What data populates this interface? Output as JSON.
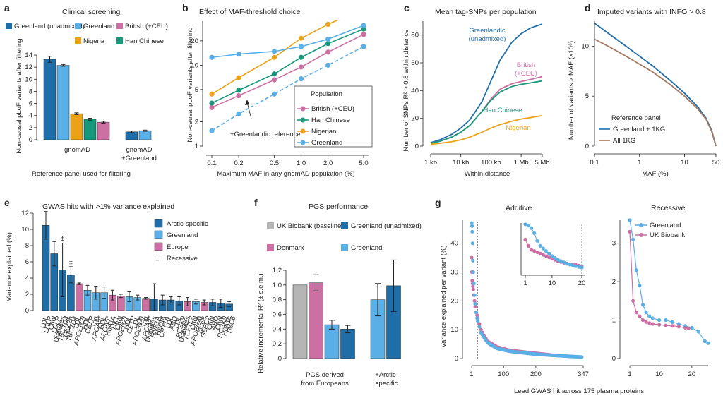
{
  "colors": {
    "greenland_unadmixed": "#1f6ea8",
    "greenland": "#5ab0e6",
    "british": "#cc6fa3",
    "nigeria": "#eba217",
    "han_chinese": "#17987a",
    "all_1kg": "#a57860",
    "ukb_baseline": "#b5b5b5",
    "denmark": "#cc6fa3",
    "arctic": "#1f6ea8",
    "europe": "#cc6fa3"
  },
  "panels": {
    "a": {
      "letter": "a",
      "title": "Clinical screening",
      "legend": [
        "Greenland (unadmixed)",
        "Greenland",
        "Nigeria",
        "British (+CEU)",
        "Han Chinese"
      ],
      "ylabel": "Non-causal pLoF variants after filtering",
      "xlabel": "Reference panel used for filtering",
      "groups": [
        "gnomAD",
        "gnomAD +Greenland"
      ]
    },
    "b": {
      "letter": "b",
      "title": "Effect of MAF-threshold choice",
      "ylabel": "Non-causal pLoF variants after filtering",
      "xlabel": "Maximum MAF in any gnomAD population (%)",
      "legend_title": "Population",
      "legend": [
        "British (+CEU)",
        "Han Chinese",
        "Nigerian",
        "Greenland"
      ],
      "annotation": "+Greenlandic reference"
    },
    "c": {
      "letter": "c",
      "title": "Mean tag-SNPs per population",
      "ylabel": "Number of SNPs R² > 0.8 within distance",
      "xlabel": "Within distance",
      "labels": [
        "Greenlandic (unadmixed)",
        "British (+CEU)",
        "Han Chinese",
        "Nigerian"
      ]
    },
    "d": {
      "letter": "d",
      "title": "Imputed variants with INFO > 0.8",
      "ylabel": "Number of variants > MAF (×10⁶)",
      "xlabel": "MAF (%)",
      "legend_title": "Reference panel",
      "legend": [
        "Greenland + 1KG",
        "All 1KG"
      ]
    },
    "e": {
      "letter": "e",
      "title": "GWAS hits with >1% variance explained",
      "ylabel": "Variance explained (%)",
      "legend": [
        "Arctic-specific",
        "Greenland",
        "Europe",
        "Recessive"
      ],
      "dagger": "‡"
    },
    "f": {
      "letter": "f",
      "title": "PGS performance",
      "ylabel": "Relative incremental R² (± s.e.m.)",
      "legend": [
        "UK Biobank (baseline)",
        "Greenland (unadmixed)",
        "Denmark",
        "Greenland"
      ],
      "groups": [
        "PGS derived from Europeans",
        "+Arctic-specific"
      ]
    },
    "g": {
      "letter": "g",
      "title_additive": "Additive",
      "title_recessive": "Recessive",
      "ylabel": "Variance explained per variant (%)",
      "xlabel": "Lead GWAS hit across 175 plasma proteins",
      "legend": [
        "Greenland",
        "UK Biobank"
      ]
    }
  },
  "chart_data": [
    {
      "panel": "a",
      "type": "bar",
      "ylim": [
        0,
        14
      ],
      "yticks": [
        0,
        2,
        4,
        6,
        8,
        10,
        12,
        14
      ],
      "series_groups": [
        {
          "group": "gnomAD",
          "bars": [
            {
              "series": "Greenland (unadmixed)",
              "value": 13.3,
              "err": 0.5
            },
            {
              "series": "Greenland",
              "value": 12.3,
              "err": 0.15
            },
            {
              "series": "Nigeria",
              "value": 4.3,
              "err": 0.15
            },
            {
              "series": "Han Chinese",
              "value": 3.4,
              "err": 0.15
            },
            {
              "series": "British (+CEU)",
              "value": 2.9,
              "err": 0.15
            }
          ]
        },
        {
          "group": "gnomAD +Greenland",
          "bars": [
            {
              "series": "Greenland (unadmixed)",
              "value": 1.3,
              "err": 0.15
            },
            {
              "series": "Greenland",
              "value": 1.5,
              "err": 0.1
            }
          ]
        }
      ]
    },
    {
      "panel": "b",
      "type": "line",
      "xscale": "log",
      "yscale": "log",
      "x": [
        0.1,
        0.2,
        0.5,
        1.0,
        2.0,
        5.0
      ],
      "xticks": [
        "0.1",
        "0.2",
        "0.5",
        "1.0",
        "2.0",
        "5.0"
      ],
      "yticks": [
        1,
        2,
        5,
        10,
        20
      ],
      "ylim": [
        1,
        35
      ],
      "series": [
        {
          "name": "British (+CEU)",
          "values": [
            3.0,
            4.2,
            6.6,
            9.5,
            14.5,
            24
          ]
        },
        {
          "name": "Han Chinese",
          "values": [
            3.4,
            4.9,
            7.8,
            12.5,
            18.5,
            28
          ]
        },
        {
          "name": "Nigerian",
          "values": [
            4.4,
            7.0,
            12.5,
            21.5,
            32,
            50
          ]
        },
        {
          "name": "Greenland",
          "values": [
            12.5,
            13.7,
            14.8,
            17.0,
            21.0,
            31
          ]
        },
        {
          "name": "+Greenlandic reference",
          "dashed": true,
          "values": [
            1.55,
            2.5,
            4.4,
            6.8,
            10.0,
            17
          ]
        }
      ]
    },
    {
      "panel": "c",
      "type": "line",
      "xscale": "log",
      "xticks": [
        "1 kb",
        "10 kb",
        "100 kb",
        "1 Mb",
        "5 Mb"
      ],
      "yticks": [
        0,
        20,
        40,
        60,
        80
      ],
      "ylim": [
        0,
        90
      ],
      "x_kb": [
        1,
        2,
        5,
        10,
        20,
        50,
        100,
        200,
        500,
        1000,
        2000,
        5000
      ],
      "series": [
        {
          "name": "Greenlandic (unadmixed)",
          "values": [
            2.5,
            4.5,
            8.5,
            13,
            19,
            32,
            47,
            62,
            75,
            81,
            85,
            88
          ]
        },
        {
          "name": "British (+CEU)",
          "values": [
            2,
            3.5,
            6.5,
            10,
            15,
            25,
            34,
            41,
            45,
            46.5,
            48,
            50
          ]
        },
        {
          "name": "Han Chinese",
          "values": [
            2,
            3.5,
            6.5,
            10,
            15,
            25,
            33,
            39,
            43,
            44.5,
            45.5,
            47
          ]
        },
        {
          "name": "Nigerian",
          "values": [
            1.3,
            2,
            3.2,
            4.5,
            6.5,
            10,
            13,
            15.5,
            18,
            19.5,
            20.5,
            22
          ]
        }
      ]
    },
    {
      "panel": "d",
      "type": "line",
      "xscale": "log",
      "xticks": [
        "0.1",
        "1",
        "10",
        "50"
      ],
      "yticks": [
        0,
        5,
        10
      ],
      "ylim": [
        0,
        12.5
      ],
      "x": [
        0.1,
        0.2,
        0.5,
        1,
        2,
        5,
        10,
        20,
        30,
        40,
        50
      ],
      "series": [
        {
          "name": "Greenland + 1KG",
          "values": [
            12.3,
            11.3,
            10.0,
            9.0,
            8.0,
            6.5,
            5.3,
            3.9,
            2.8,
            1.6,
            0
          ]
        },
        {
          "name": "All 1KG",
          "values": [
            10.7,
            10.0,
            9.0,
            8.2,
            7.4,
            6.1,
            5.0,
            3.7,
            2.7,
            1.5,
            0
          ]
        }
      ]
    },
    {
      "panel": "e",
      "type": "bar",
      "ylim": [
        0,
        12
      ],
      "yticks": [
        0,
        2,
        4,
        6,
        8,
        10,
        12
      ],
      "bars": [
        {
          "trait": "LDL",
          "gene": "LDLR",
          "value": 10.5,
          "err": 1.7,
          "group": "Arctic-specific"
        },
        {
          "trait": "Chol",
          "gene": "LDLR",
          "value": 7.0,
          "err": 1.5,
          "group": "Arctic-specific"
        },
        {
          "trait": "Diabetes",
          "gene": "TBC1D4",
          "value": 5.0,
          "err": 3.3,
          "group": "Arctic-specific",
          "recessive": true
        },
        {
          "trait": "Gluc2h",
          "gene": "TBC1D4",
          "value": 4.4,
          "err": 1.0,
          "group": "Arctic-specific",
          "recessive": true
        },
        {
          "trait": "LDL",
          "gene": "APOE(ε2)",
          "value": 3.3,
          "err": 0.1,
          "group": "Europe"
        },
        {
          "trait": "HDL",
          "gene": "CETP",
          "value": 2.5,
          "err": 0.6,
          "group": "Greenland"
        },
        {
          "trait": "Trig",
          "gene": "APOA5*",
          "value": 2.2,
          "err": 0.8,
          "group": "Greenland"
        },
        {
          "trait": "HDL",
          "gene": "APOA5*",
          "value": 2.2,
          "err": 0.7,
          "group": "Greenland"
        },
        {
          "trait": "HbA1c",
          "gene": "HK1",
          "value": 1.9,
          "err": 0.6,
          "group": "Europe"
        },
        {
          "trait": "Chol",
          "gene": "APOE(ε2)",
          "value": 1.8,
          "err": 0.2,
          "group": "Europe"
        },
        {
          "trait": "HDL",
          "gene": "CETP",
          "value": 1.7,
          "err": 0.6,
          "group": "Greenland"
        },
        {
          "trait": "LDL",
          "gene": "APOE(ε4)",
          "value": 1.6,
          "err": 0.3,
          "group": "Greenland"
        },
        {
          "trait": "Trig",
          "gene": "APOA5*",
          "value": 1.5,
          "err": 0.1,
          "group": "Europe"
        },
        {
          "trait": "Diabetes",
          "gene": "HNF1A",
          "value": 1.4,
          "err": 1.9,
          "group": "Arctic-specific"
        },
        {
          "trait": "Height",
          "gene": "CPT1A",
          "value": 1.3,
          "err": 0.6,
          "group": "Arctic-specific"
        },
        {
          "trait": "LDL",
          "gene": "ABO",
          "value": 1.3,
          "err": 0.4,
          "group": "Arctic-specific"
        },
        {
          "trait": "LDL",
          "gene": "PCSK9",
          "value": 1.2,
          "err": 0.5,
          "group": "Arctic-specific"
        },
        {
          "trait": "Diabetes",
          "gene": "TCF7L2",
          "value": 1.1,
          "err": 0.5,
          "group": "Europe"
        },
        {
          "trait": "Chol",
          "gene": "APOE(ε4)",
          "value": 1.1,
          "err": 0.3,
          "group": "Greenland"
        },
        {
          "trait": "glucR",
          "gene": "G6PC2",
          "value": 1.0,
          "err": 0.3,
          "group": "Europe"
        },
        {
          "trait": "Chol",
          "gene": "ABO",
          "value": 1.0,
          "err": 0.4,
          "group": "Arctic-specific"
        },
        {
          "trait": "Chol",
          "gene": "PCSK9",
          "value": 0.9,
          "err": 0.5,
          "group": "Arctic-specific"
        },
        {
          "trait": "HbA1c",
          "gene": "TMC6",
          "value": 0.8,
          "err": 0.3,
          "group": "Arctic-specific"
        }
      ]
    },
    {
      "panel": "f",
      "type": "bar",
      "ylim": [
        0,
        1.2
      ],
      "yticks": [
        "0",
        "0.2",
        "0.4",
        "0.6",
        "0.8",
        "1.0",
        "1.2"
      ],
      "groups": [
        {
          "group": "PGS derived from Europeans",
          "bars": [
            {
              "series": "UK Biobank (baseline)",
              "value": 1.0,
              "err": 0
            },
            {
              "series": "Denmark",
              "value": 1.03,
              "err": 0.11
            },
            {
              "series": "Greenland",
              "value": 0.46,
              "err": 0.06
            },
            {
              "series": "Greenland (unadmixed)",
              "value": 0.4,
              "err": 0.05
            }
          ]
        },
        {
          "group": "+Arctic-specific",
          "bars": [
            {
              "series": "Greenland",
              "value": 0.8,
              "err": 0.22
            },
            {
              "series": "Greenland (unadmixed)",
              "value": 0.99,
              "err": 0.35
            }
          ]
        }
      ]
    },
    {
      "panel": "g-additive",
      "type": "scatter",
      "xticks": [
        "1",
        "100",
        "200",
        "300",
        "347"
      ],
      "yticks": [
        0,
        10,
        20,
        30,
        40
      ],
      "ylim": [
        0,
        48
      ],
      "inset_xticks": [
        "1",
        "10",
        "20"
      ],
      "series": [
        {
          "name": "Greenland",
          "points": [
            [
              1,
              47
            ],
            [
              2,
              46
            ],
            [
              3,
              44
            ],
            [
              4,
              40
            ],
            [
              5,
              34
            ],
            [
              6,
              30
            ],
            [
              8,
              26
            ],
            [
              10,
              22
            ],
            [
              12,
              19
            ],
            [
              15,
              16
            ],
            [
              18,
              14
            ],
            [
              20,
              13
            ],
            [
              30,
              9
            ],
            [
              50,
              5.5
            ],
            [
              80,
              3.5
            ],
            [
              120,
              2.5
            ],
            [
              200,
              1.5
            ],
            [
              300,
              0.8
            ],
            [
              347,
              0.5
            ]
          ]
        },
        {
          "name": "UK Biobank",
          "points": [
            [
              1,
              35
            ],
            [
              2,
              30
            ],
            [
              3,
              27
            ],
            [
              4,
              26
            ],
            [
              5,
              25
            ],
            [
              6,
              24
            ],
            [
              8,
              22
            ],
            [
              10,
              20
            ],
            [
              12,
              18
            ],
            [
              15,
              16
            ],
            [
              18,
              15
            ],
            [
              20,
              14
            ],
            [
              30,
              10
            ],
            [
              50,
              6
            ],
            [
              80,
              4
            ],
            [
              120,
              2.8
            ],
            [
              200,
              1.8
            ],
            [
              250,
              1.2
            ]
          ]
        }
      ]
    },
    {
      "panel": "g-recessive",
      "type": "scatter",
      "xticks": [
        "1",
        "10",
        "20"
      ],
      "yticks": [
        0,
        1,
        2,
        3
      ],
      "ylim": [
        0,
        3.6
      ],
      "series": [
        {
          "name": "Greenland",
          "points": [
            [
              1,
              3.6
            ],
            [
              2,
              3.1
            ],
            [
              3,
              2.3
            ],
            [
              4,
              1.9
            ],
            [
              5,
              1.4
            ],
            [
              6,
              1.2
            ],
            [
              7,
              1.1
            ],
            [
              8,
              1.05
            ],
            [
              10,
              1.0
            ],
            [
              12,
              1.0
            ],
            [
              14,
              0.95
            ],
            [
              16,
              0.9
            ],
            [
              18,
              0.85
            ],
            [
              20,
              0.8
            ],
            [
              22,
              0.7
            ],
            [
              24,
              0.45
            ],
            [
              25,
              0.4
            ]
          ]
        },
        {
          "name": "UK Biobank",
          "points": [
            [
              1,
              3.3
            ],
            [
              2,
              1.5
            ],
            [
              3,
              1.2
            ],
            [
              4,
              1.1
            ],
            [
              5,
              1.0
            ],
            [
              6,
              0.95
            ],
            [
              7,
              0.92
            ],
            [
              8,
              0.9
            ],
            [
              10,
              0.88
            ],
            [
              12,
              0.86
            ],
            [
              14,
              0.85
            ],
            [
              16,
              0.83
            ],
            [
              18,
              0.8
            ],
            [
              19,
              0.79
            ]
          ]
        }
      ]
    }
  ]
}
